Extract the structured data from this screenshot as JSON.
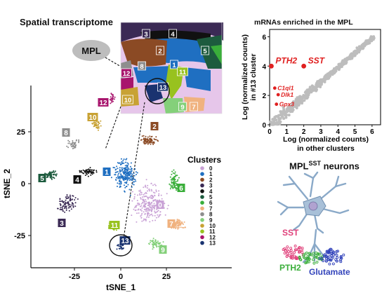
{
  "figure_title": "Spatial transcriptome",
  "mpl_label": "MPL",
  "tsne": {
    "xlabel": "tSNE_1",
    "ylabel": "tSNE_2",
    "xticks": [
      "-25",
      "0",
      "25"
    ],
    "yticks": [
      "25",
      "0",
      "-25"
    ],
    "legend_title": "Clusters",
    "clusters": [
      {
        "id": "0",
        "color": "#c9a2d6"
      },
      {
        "id": "1",
        "color": "#1f6fc1"
      },
      {
        "id": "2",
        "color": "#8b4a24"
      },
      {
        "id": "3",
        "color": "#3b2a55"
      },
      {
        "id": "4",
        "color": "#111111"
      },
      {
        "id": "5",
        "color": "#1d5b3e"
      },
      {
        "id": "6",
        "color": "#3aae3a"
      },
      {
        "id": "7",
        "color": "#f0b27f"
      },
      {
        "id": "8",
        "color": "#8e8e8e"
      },
      {
        "id": "9",
        "color": "#84d07a"
      },
      {
        "id": "10",
        "color": "#c8a234"
      },
      {
        "id": "11",
        "color": "#98c21f"
      },
      {
        "id": "12",
        "color": "#a8156d"
      },
      {
        "id": "13",
        "color": "#1a3370"
      }
    ]
  },
  "scatter": {
    "type": "scatter",
    "title": "mRNAs enriched in the MPL",
    "xlabel": "Log (normalized counts) in other clusters",
    "xlabel_line1": "Log (normalized counts)",
    "xlabel_line2": "in other clusters",
    "ylabel": "Log (normalized counts) in #13 cluster",
    "ylabel_line1": "Log (normalized counts)",
    "ylabel_line2": "in #13 cluster",
    "xlim": [
      0,
      6.5
    ],
    "ylim": [
      0,
      6.5
    ],
    "xticks": [
      "0",
      "1",
      "2",
      "3",
      "4",
      "5",
      "6"
    ],
    "yticks": [
      "0",
      "2",
      "4",
      "6"
    ],
    "highlight_color": "#e02020",
    "genes": [
      {
        "name": "PTH2",
        "x": 0.1,
        "y": 4.0,
        "size": "large"
      },
      {
        "name": "SST",
        "x": 2.0,
        "y": 4.0,
        "size": "large"
      },
      {
        "name": "C1ql1",
        "x": 0.3,
        "y": 2.5,
        "size": "small"
      },
      {
        "name": "Dlk1",
        "x": 0.5,
        "y": 2.05,
        "size": "small"
      },
      {
        "name": "Gpx3",
        "x": 0.4,
        "y": 1.4,
        "size": "small"
      }
    ]
  },
  "neuron_panel": {
    "title_main": "MPL",
    "title_sup": "SST",
    "title_suffix": "neurons",
    "sst_label": "SST",
    "pth2_label": "PTH2",
    "glutamate_label": "Glutamate",
    "sst_color": "#e0407a",
    "pth2_color": "#3aae3a",
    "glutamate_color": "#3344bb"
  },
  "tissue_labels": [
    "3",
    "4",
    "5",
    "2",
    "1",
    "8",
    "12",
    "11",
    "10",
    "13",
    "9",
    "7"
  ]
}
